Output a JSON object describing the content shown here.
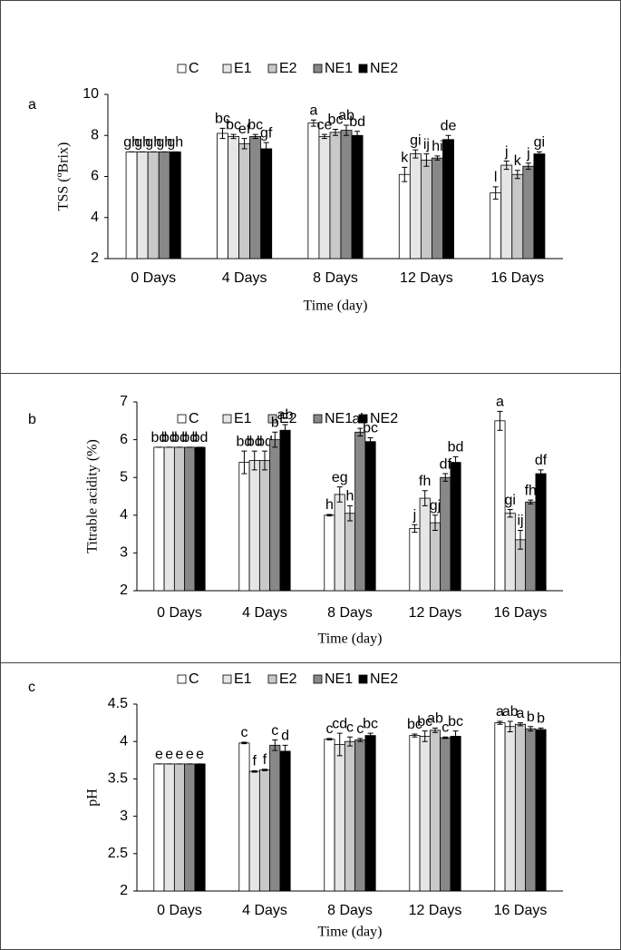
{
  "chart_data": [
    {
      "type": "bar",
      "panel_label": "a",
      "y_label": "TSS (ºBrix)",
      "x_label": "Time (day)",
      "categories": [
        "0 Days",
        "4 Days",
        "8 Days",
        "12 Days",
        "16 Days"
      ],
      "ylim": [
        2,
        10
      ],
      "yticks": [
        2,
        4,
        6,
        8,
        10
      ],
      "series": [
        {
          "name": "C",
          "color": "#ffffff",
          "values": [
            7.2,
            8.1,
            8.6,
            6.1,
            5.2
          ],
          "errors": [
            0,
            0.25,
            0.15,
            0.35,
            0.3
          ],
          "labels": [
            "gh",
            "bc",
            "a",
            "k",
            "l"
          ]
        },
        {
          "name": "E1",
          "color": "#e6e6e6",
          "values": [
            7.2,
            7.95,
            7.95,
            7.1,
            6.55
          ],
          "errors": [
            0,
            0.1,
            0.1,
            0.2,
            0.2
          ],
          "labels": [
            "gh",
            "bc",
            "ce",
            "gi",
            "j"
          ]
        },
        {
          "name": "E2",
          "color": "#c8c8c8",
          "values": [
            7.2,
            7.6,
            8.15,
            6.8,
            6.1
          ],
          "errors": [
            0,
            0.25,
            0.15,
            0.3,
            0.2
          ],
          "labels": [
            "gh",
            "ef",
            "bc",
            "ij",
            "k"
          ]
        },
        {
          "name": "NE1",
          "color": "#888888",
          "values": [
            7.2,
            7.95,
            8.25,
            6.9,
            6.5
          ],
          "errors": [
            0,
            0.1,
            0.25,
            0.1,
            0.15
          ],
          "labels": [
            "gh",
            "bc",
            "ab",
            "hi",
            "j"
          ]
        },
        {
          "name": "NE2",
          "color": "#000000",
          "values": [
            7.2,
            7.35,
            8.0,
            7.8,
            7.1
          ],
          "errors": [
            0,
            0.3,
            0.2,
            0.2,
            0.1
          ],
          "labels": [
            "gh",
            "gf",
            "bd",
            "de",
            "gi"
          ]
        }
      ]
    },
    {
      "type": "bar",
      "panel_label": "b",
      "y_label": "Titrable acidity (%)",
      "x_label": "Time (day)",
      "categories": [
        "0 Days",
        "4 Days",
        "8 Days",
        "12 Days",
        "16 Days"
      ],
      "ylim": [
        2,
        7
      ],
      "yticks": [
        2,
        3,
        4,
        5,
        6,
        7
      ],
      "series": [
        {
          "name": "C",
          "color": "#ffffff",
          "values": [
            5.8,
            5.4,
            4.0,
            3.65,
            6.5
          ],
          "errors": [
            0,
            0.3,
            0.02,
            0.1,
            0.25
          ],
          "labels": [
            "bd",
            "bd",
            "h",
            "j",
            "a"
          ]
        },
        {
          "name": "E1",
          "color": "#e6e6e6",
          "values": [
            5.8,
            5.45,
            4.55,
            4.45,
            4.05
          ],
          "errors": [
            0,
            0.25,
            0.2,
            0.2,
            0.1
          ],
          "labels": [
            "bd",
            "bd",
            "eg",
            "fh",
            "gi"
          ]
        },
        {
          "name": "E2",
          "color": "#c8c8c8",
          "values": [
            5.8,
            5.45,
            4.05,
            3.8,
            3.35
          ],
          "errors": [
            0,
            0.25,
            0.2,
            0.2,
            0.25
          ],
          "labels": [
            "bd",
            "bd",
            "h",
            "gj",
            "ij"
          ]
        },
        {
          "name": "NE1",
          "color": "#888888",
          "values": [
            5.8,
            6.0,
            6.2,
            5.0,
            4.35
          ],
          "errors": [
            0,
            0.2,
            0.1,
            0.1,
            0.05
          ],
          "labels": [
            "bd",
            "b",
            "ab",
            "df",
            "fh"
          ]
        },
        {
          "name": "NE2",
          "color": "#000000",
          "values": [
            5.8,
            6.25,
            5.95,
            5.4,
            5.1
          ],
          "errors": [
            0,
            0.15,
            0.1,
            0.15,
            0.1
          ],
          "labels": [
            "bd",
            "ab",
            "bc",
            "bd",
            "df"
          ]
        }
      ]
    },
    {
      "type": "bar",
      "panel_label": "c",
      "y_label": "pH",
      "x_label": "Time (day)",
      "categories": [
        "0 Days",
        "4 Days",
        "8 Days",
        "12 Days",
        "16 Days"
      ],
      "ylim": [
        2,
        4.5
      ],
      "yticks": [
        2,
        2.5,
        3,
        3.5,
        4,
        4.5
      ],
      "series": [
        {
          "name": "C",
          "color": "#ffffff",
          "values": [
            3.7,
            3.98,
            4.03,
            4.08,
            4.25
          ],
          "errors": [
            0,
            0.01,
            0.01,
            0.02,
            0.02
          ],
          "labels": [
            "e",
            "c",
            "c",
            "bc",
            "a"
          ]
        },
        {
          "name": "E1",
          "color": "#e6e6e6",
          "values": [
            3.7,
            3.6,
            3.96,
            4.07,
            4.2
          ],
          "errors": [
            0,
            0.01,
            0.15,
            0.07,
            0.07
          ],
          "labels": [
            "e",
            "f",
            "cd",
            "bc",
            "ab"
          ]
        },
        {
          "name": "E2",
          "color": "#c8c8c8",
          "values": [
            3.7,
            3.62,
            4.0,
            4.15,
            4.23
          ],
          "errors": [
            0,
            0.01,
            0.06,
            0.03,
            0.02
          ],
          "labels": [
            "e",
            "f",
            "c",
            "ab",
            "a"
          ]
        },
        {
          "name": "NE1",
          "color": "#888888",
          "values": [
            3.7,
            3.95,
            4.02,
            4.05,
            4.17
          ],
          "errors": [
            0,
            0.07,
            0.02,
            0.01,
            0.03
          ],
          "labels": [
            "e",
            "c",
            "c",
            "c",
            "b"
          ]
        },
        {
          "name": "NE2",
          "color": "#000000",
          "values": [
            3.7,
            3.87,
            4.08,
            4.07,
            4.16
          ],
          "errors": [
            0,
            0.08,
            0.03,
            0.07,
            0.02
          ],
          "labels": [
            "e",
            "d",
            "bc",
            "bc",
            "b"
          ]
        }
      ]
    }
  ]
}
